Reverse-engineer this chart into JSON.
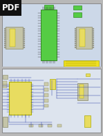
{
  "fig_width": 1.49,
  "fig_height": 1.98,
  "dpi": 100,
  "bg_outer": "#b8b8b8",
  "page1_bg": "#ccd8e8",
  "page2_bg": "#dde4ee",
  "page1_border": "#888888",
  "page2_border": "#888888",
  "pdf_badge_bg": "#111111",
  "pdf_badge_text": "PDF",
  "pdf_text_color": "#ffffff",
  "green_ic": "#55cc44",
  "green_ic_border": "#338822",
  "yellow_comp": "#e8dc60",
  "yellow_border": "#aaaa00",
  "gray_conn": "#c4c4a8",
  "gray_conn_border": "#888866",
  "gray_pin": "#999988",
  "yellow_title": "#f0e020",
  "line_color": "#3344aa",
  "small_comp": "#ccccaa",
  "small_comp_border": "#888866"
}
